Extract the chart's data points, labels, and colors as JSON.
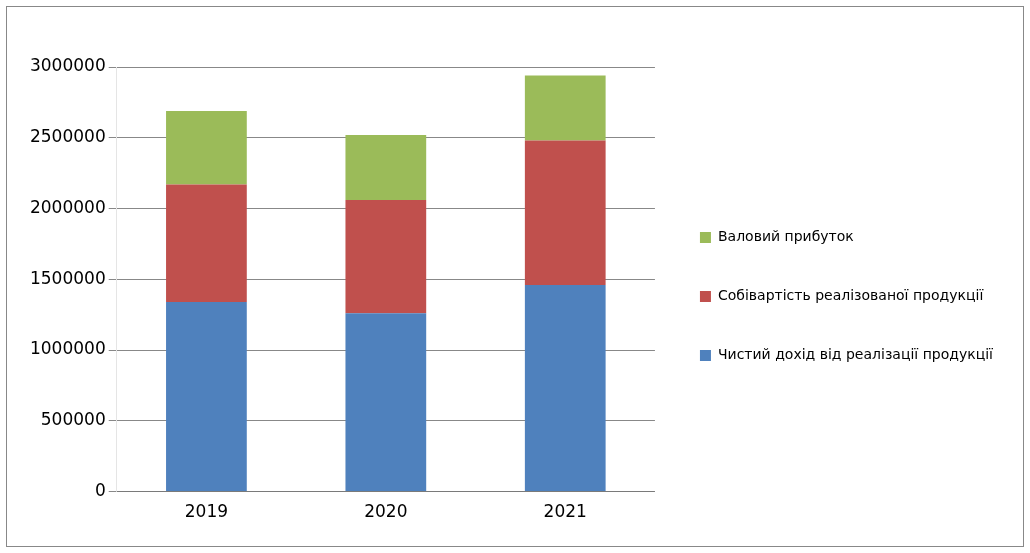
{
  "chart_data": {
    "type": "bar",
    "stacked": true,
    "categories": [
      "2019",
      "2020",
      "2021"
    ],
    "series": [
      {
        "name": "Чистий дохід від реалізації продукції",
        "color": "#4f81bd",
        "values": [
          1340000,
          1260000,
          1460000
        ]
      },
      {
        "name": "Собівартість реалізованої продукції",
        "color": "#c0504d",
        "values": [
          830000,
          800000,
          1020000
        ]
      },
      {
        "name": "Валовий прибуток",
        "color": "#9bbb59",
        "values": [
          520000,
          460000,
          460000
        ]
      }
    ],
    "ylim": [
      0,
      3000000
    ],
    "yticks": [
      0,
      500000,
      1000000,
      1500000,
      2000000,
      2500000,
      3000000
    ],
    "grid": "y",
    "legend": "right"
  }
}
